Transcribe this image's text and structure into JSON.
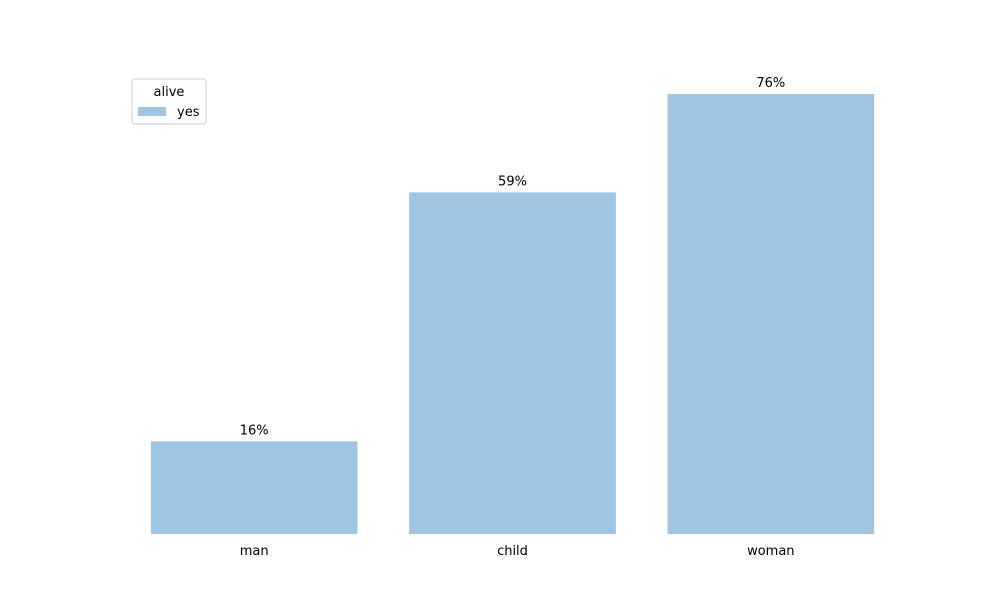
{
  "chart_data": {
    "type": "bar",
    "categories": [
      "man",
      "child",
      "woman"
    ],
    "series": [
      {
        "name": "yes",
        "values": [
          16,
          59,
          76
        ],
        "labels": [
          "16%",
          "59%",
          "76%"
        ],
        "color": "#9fc5e2"
      }
    ],
    "title": "",
    "xlabel": "",
    "ylabel": "",
    "ylim": [
      0,
      80
    ],
    "grid": false,
    "legend": {
      "title": "alive",
      "placement": "top-left",
      "entries": [
        "yes"
      ]
    }
  }
}
